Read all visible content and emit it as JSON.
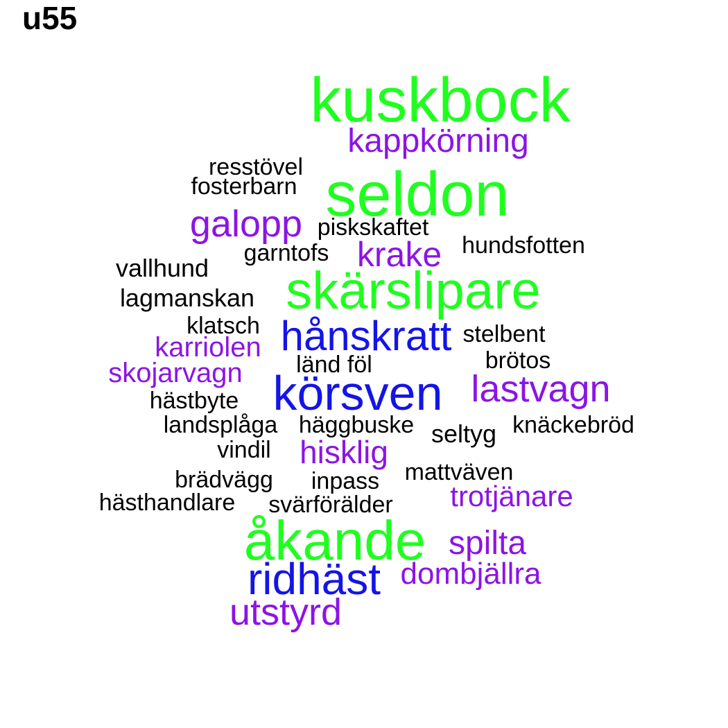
{
  "title": "u55",
  "colors": {
    "large": "#1FFF1F",
    "medium": "#1414E6",
    "small": "#8C14E6",
    "tiny": "#000000"
  },
  "words": [
    {
      "text": "kuskbock",
      "tier": "large"
    },
    {
      "text": "kappkörning",
      "tier": "small"
    },
    {
      "text": "resstövel",
      "tier": "tiny"
    },
    {
      "text": "fosterbarn",
      "tier": "tiny"
    },
    {
      "text": "seldon",
      "tier": "large"
    },
    {
      "text": "galopp",
      "tier": "small"
    },
    {
      "text": "piskskaftet",
      "tier": "tiny"
    },
    {
      "text": "hundsfotten",
      "tier": "tiny"
    },
    {
      "text": "garntofs",
      "tier": "tiny"
    },
    {
      "text": "krake",
      "tier": "small"
    },
    {
      "text": "vallhund",
      "tier": "tiny"
    },
    {
      "text": "skärslipare",
      "tier": "large"
    },
    {
      "text": "lagmanskan",
      "tier": "tiny"
    },
    {
      "text": "klatsch",
      "tier": "tiny"
    },
    {
      "text": "hånskratt",
      "tier": "medium"
    },
    {
      "text": "stelbent",
      "tier": "tiny"
    },
    {
      "text": "karriolen",
      "tier": "small"
    },
    {
      "text": "brötos",
      "tier": "tiny"
    },
    {
      "text": "länd föl",
      "tier": "tiny"
    },
    {
      "text": "skojarvagn",
      "tier": "small"
    },
    {
      "text": "körsven",
      "tier": "medium"
    },
    {
      "text": "lastvagn",
      "tier": "small"
    },
    {
      "text": "hästbyte",
      "tier": "tiny"
    },
    {
      "text": "landsplåga",
      "tier": "tiny"
    },
    {
      "text": "häggbuske",
      "tier": "tiny"
    },
    {
      "text": "seltyg",
      "tier": "tiny"
    },
    {
      "text": "knäckebröd",
      "tier": "tiny"
    },
    {
      "text": "vindil",
      "tier": "tiny"
    },
    {
      "text": "hisklig",
      "tier": "small"
    },
    {
      "text": "mattväven",
      "tier": "tiny"
    },
    {
      "text": "brädvägg",
      "tier": "tiny"
    },
    {
      "text": "inpass",
      "tier": "tiny"
    },
    {
      "text": "trotjänare",
      "tier": "small"
    },
    {
      "text": "hästhandlare",
      "tier": "tiny"
    },
    {
      "text": "svärförälder",
      "tier": "tiny"
    },
    {
      "text": "åkande",
      "tier": "large"
    },
    {
      "text": "spilta",
      "tier": "small"
    },
    {
      "text": "dombjällra",
      "tier": "small"
    },
    {
      "text": "ridhäst",
      "tier": "medium"
    },
    {
      "text": "utstyrd",
      "tier": "small"
    }
  ]
}
